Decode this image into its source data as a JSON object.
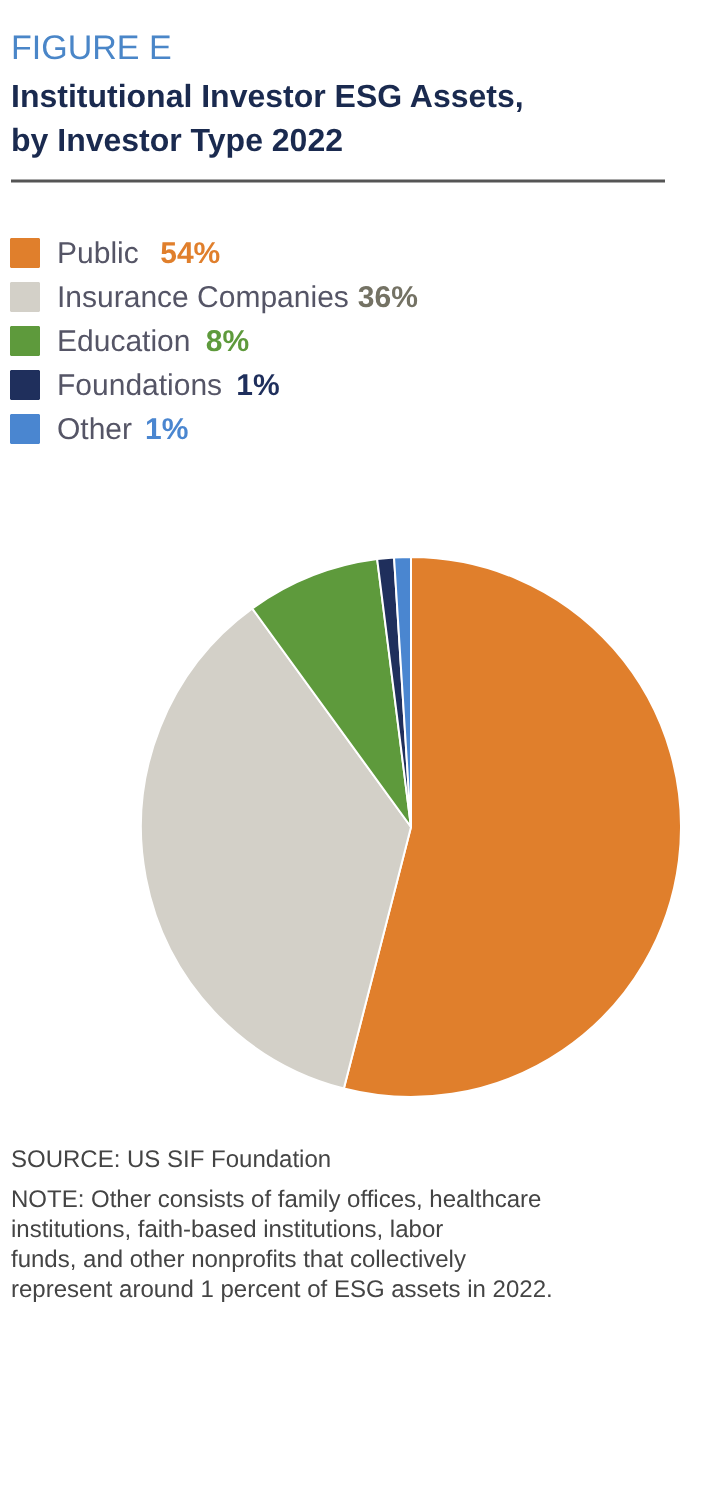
{
  "chart_data": {
    "type": "pie",
    "subtitle": "FIGURE E",
    "title": "Institutional Investor ESG Assets, by Investor Type 2022",
    "categories": [
      "Public",
      "Insurance Companies",
      "Education",
      "Foundations",
      "Other"
    ],
    "values": [
      54,
      36,
      8,
      1,
      1
    ],
    "colors": [
      "#e07f2c",
      "#d3d0c8",
      "#5e9a3c",
      "#1f2f5c",
      "#4a86d0"
    ],
    "value_labels": [
      "54%",
      "36%",
      "8%",
      "1%",
      "1%"
    ],
    "legend": "top",
    "annotations": [
      "SOURCE: US SIF Foundation",
      "NOTE: Other consists of family offices, healthcare institutions, faith-based institutions, labor funds, and other nonprofits that collectively represent around 1 percent of ESG assets in 2022."
    ]
  }
}
